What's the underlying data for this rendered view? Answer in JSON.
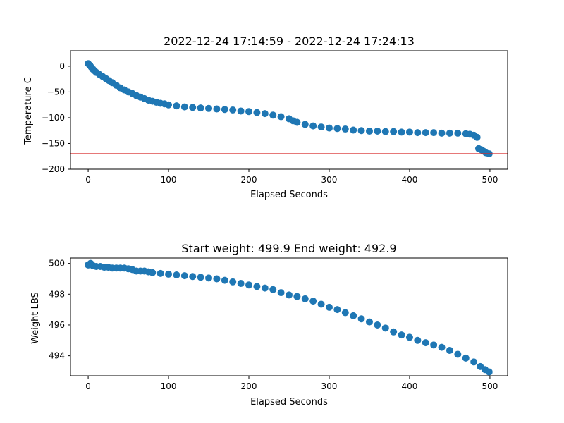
{
  "figure": {
    "background": "#ffffff"
  },
  "chart_data": [
    {
      "type": "scatter",
      "title": "2022-12-24 17:14:59 - 2022-12-24 17:24:13",
      "xlabel": "Elapsed Seconds",
      "ylabel": "Temperature C",
      "xlim": [
        -22,
        522
      ],
      "ylim": [
        -200,
        30
      ],
      "xticks": [
        0,
        100,
        200,
        300,
        400,
        500
      ],
      "yticks": [
        0,
        -50,
        -100,
        -150,
        -200
      ],
      "ytick_labels": [
        "0",
        "−50",
        "−100",
        "−150",
        "−200"
      ],
      "color": "#1f77b4",
      "reference_line": {
        "y": -170,
        "color": "#d62728"
      },
      "grid": false,
      "series": [
        {
          "points": [
            [
              0,
              5
            ],
            [
              2,
              2
            ],
            [
              4,
              -2
            ],
            [
              6,
              -6
            ],
            [
              8,
              -9
            ],
            [
              10,
              -12
            ],
            [
              14,
              -16
            ],
            [
              18,
              -20
            ],
            [
              22,
              -24
            ],
            [
              26,
              -28
            ],
            [
              30,
              -32
            ],
            [
              35,
              -37
            ],
            [
              40,
              -42
            ],
            [
              45,
              -46
            ],
            [
              50,
              -50
            ],
            [
              55,
              -53
            ],
            [
              60,
              -57
            ],
            [
              65,
              -60
            ],
            [
              70,
              -63
            ],
            [
              75,
              -66
            ],
            [
              80,
              -68
            ],
            [
              85,
              -70
            ],
            [
              90,
              -72
            ],
            [
              95,
              -73
            ],
            [
              100,
              -75
            ],
            [
              110,
              -77
            ],
            [
              120,
              -79
            ],
            [
              130,
              -80
            ],
            [
              140,
              -81
            ],
            [
              150,
              -82
            ],
            [
              160,
              -83
            ],
            [
              170,
              -84
            ],
            [
              180,
              -85
            ],
            [
              190,
              -87
            ],
            [
              200,
              -88
            ],
            [
              210,
              -90
            ],
            [
              220,
              -92
            ],
            [
              230,
              -95
            ],
            [
              240,
              -98
            ],
            [
              250,
              -102
            ],
            [
              255,
              -106
            ],
            [
              260,
              -109
            ],
            [
              270,
              -113
            ],
            [
              280,
              -116
            ],
            [
              290,
              -118
            ],
            [
              300,
              -120
            ],
            [
              310,
              -121
            ],
            [
              320,
              -122
            ],
            [
              330,
              -124
            ],
            [
              340,
              -125
            ],
            [
              350,
              -126
            ],
            [
              360,
              -126
            ],
            [
              370,
              -127
            ],
            [
              380,
              -127
            ],
            [
              390,
              -128
            ],
            [
              400,
              -128
            ],
            [
              410,
              -129
            ],
            [
              420,
              -129
            ],
            [
              430,
              -129
            ],
            [
              440,
              -130
            ],
            [
              450,
              -130
            ],
            [
              460,
              -130
            ],
            [
              470,
              -131
            ],
            [
              475,
              -132
            ],
            [
              480,
              -134
            ],
            [
              484,
              -138
            ],
            [
              486,
              -160
            ],
            [
              489,
              -162
            ],
            [
              492,
              -165
            ],
            [
              495,
              -168
            ],
            [
              499,
              -170
            ]
          ]
        }
      ]
    },
    {
      "type": "scatter",
      "title": "Start weight: 499.9 End weight: 492.9",
      "xlabel": "Elapsed Seconds",
      "ylabel": "Weight LBS",
      "xlim": [
        -22,
        522
      ],
      "ylim": [
        492.7,
        500.35
      ],
      "xticks": [
        0,
        100,
        200,
        300,
        400,
        500
      ],
      "yticks": [
        494,
        496,
        498,
        500
      ],
      "color": "#1f77b4",
      "grid": false,
      "series": [
        {
          "points": [
            [
              0,
              499.9
            ],
            [
              3,
              500.0
            ],
            [
              6,
              499.85
            ],
            [
              10,
              499.8
            ],
            [
              15,
              499.8
            ],
            [
              20,
              499.75
            ],
            [
              25,
              499.75
            ],
            [
              30,
              499.7
            ],
            [
              35,
              499.7
            ],
            [
              40,
              499.7
            ],
            [
              45,
              499.7
            ],
            [
              50,
              499.65
            ],
            [
              55,
              499.6
            ],
            [
              60,
              499.5
            ],
            [
              65,
              499.5
            ],
            [
              70,
              499.5
            ],
            [
              75,
              499.45
            ],
            [
              80,
              499.4
            ],
            [
              90,
              499.35
            ],
            [
              100,
              499.3
            ],
            [
              110,
              499.25
            ],
            [
              120,
              499.2
            ],
            [
              130,
              499.15
            ],
            [
              140,
              499.1
            ],
            [
              150,
              499.05
            ],
            [
              160,
              499.0
            ],
            [
              170,
              498.9
            ],
            [
              180,
              498.8
            ],
            [
              190,
              498.7
            ],
            [
              200,
              498.6
            ],
            [
              210,
              498.5
            ],
            [
              220,
              498.4
            ],
            [
              230,
              498.3
            ],
            [
              240,
              498.1
            ],
            [
              250,
              497.95
            ],
            [
              260,
              497.85
            ],
            [
              270,
              497.7
            ],
            [
              280,
              497.55
            ],
            [
              290,
              497.35
            ],
            [
              300,
              497.15
            ],
            [
              310,
              497.0
            ],
            [
              320,
              496.8
            ],
            [
              330,
              496.6
            ],
            [
              340,
              496.4
            ],
            [
              350,
              496.2
            ],
            [
              360,
              496.0
            ],
            [
              370,
              495.8
            ],
            [
              380,
              495.55
            ],
            [
              390,
              495.35
            ],
            [
              400,
              495.2
            ],
            [
              410,
              495.0
            ],
            [
              420,
              494.85
            ],
            [
              430,
              494.7
            ],
            [
              440,
              494.55
            ],
            [
              450,
              494.35
            ],
            [
              460,
              494.1
            ],
            [
              470,
              493.85
            ],
            [
              480,
              493.6
            ],
            [
              488,
              493.3
            ],
            [
              494,
              493.1
            ],
            [
              499,
              492.95
            ]
          ]
        }
      ]
    }
  ]
}
